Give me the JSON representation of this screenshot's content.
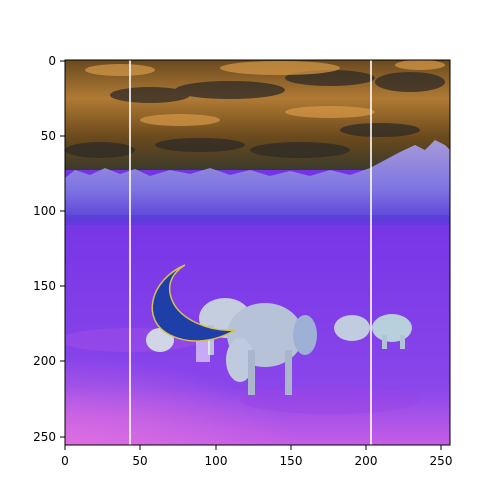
{
  "figure": {
    "image_kind": "color-inverted landscape photo shown in a matplotlib image axes",
    "image_size": [
      256,
      256
    ],
    "x_ticks": [
      "0",
      "50",
      "100",
      "150",
      "200",
      "250"
    ],
    "y_ticks": [
      "0",
      "50",
      "100",
      "150",
      "200",
      "250"
    ],
    "x_tick_values": [
      0,
      50,
      100,
      150,
      200,
      250
    ],
    "y_tick_values": [
      0,
      50,
      100,
      150,
      200,
      250
    ],
    "vertical_lines_at_x": [
      43,
      204
    ],
    "colors": {
      "sky_top": "#5a3a16",
      "sky_glow": "#c08a3c",
      "treeline": "#8e82e6",
      "field": "#7a38e8",
      "field_pink": "#d060e8",
      "crescent": "#1f3fa8",
      "crescent_edge": "#d6c24a",
      "cow": "#bcc7dc",
      "line": "#ffffff"
    }
  }
}
